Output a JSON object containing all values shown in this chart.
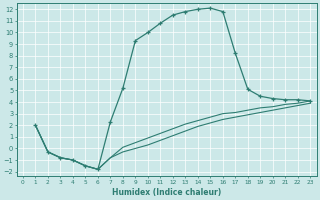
{
  "xlabel": "Humidex (Indice chaleur)",
  "bg_color": "#cce8e8",
  "line_color": "#2e7d72",
  "grid_color": "#ffffff",
  "xlim": [
    -0.5,
    23.5
  ],
  "ylim": [
    -2.4,
    12.5
  ],
  "xticks": [
    0,
    1,
    2,
    3,
    4,
    5,
    6,
    7,
    8,
    9,
    10,
    11,
    12,
    13,
    14,
    15,
    16,
    17,
    18,
    19,
    20,
    21,
    22,
    23
  ],
  "yticks": [
    -2,
    -1,
    0,
    1,
    2,
    3,
    4,
    5,
    6,
    7,
    8,
    9,
    10,
    11,
    12
  ],
  "line1_x": [
    1,
    2,
    3,
    4,
    5,
    6,
    7,
    8,
    9,
    10,
    11,
    12,
    13,
    14,
    15,
    16,
    17,
    18,
    19,
    20,
    21,
    22,
    23
  ],
  "line1_y": [
    2,
    -0.3,
    -0.8,
    -1.0,
    -1.5,
    -1.8,
    2.3,
    5.2,
    9.3,
    10.0,
    10.8,
    11.5,
    11.8,
    12.0,
    12.1,
    11.8,
    8.2,
    5.1,
    4.5,
    4.3,
    4.2,
    4.2,
    4.1
  ],
  "line2_x": [
    1,
    2,
    3,
    4,
    5,
    6,
    7,
    8,
    9,
    10,
    11,
    12,
    13,
    14,
    15,
    16,
    17,
    18,
    19,
    20,
    21,
    22,
    23
  ],
  "line2_y": [
    2,
    -0.3,
    -0.8,
    -1.0,
    -1.5,
    -1.8,
    -0.8,
    -0.3,
    0.0,
    0.3,
    0.7,
    1.1,
    1.5,
    1.9,
    2.2,
    2.5,
    2.7,
    2.9,
    3.1,
    3.3,
    3.5,
    3.7,
    3.9
  ],
  "line3_x": [
    1,
    2,
    3,
    4,
    5,
    6,
    7,
    8,
    9,
    10,
    11,
    12,
    13,
    14,
    15,
    16,
    17,
    18,
    19,
    20,
    21,
    22,
    23
  ],
  "line3_y": [
    2,
    -0.3,
    -0.8,
    -1.0,
    -1.5,
    -1.8,
    -0.8,
    0.1,
    0.5,
    0.9,
    1.3,
    1.7,
    2.1,
    2.4,
    2.7,
    3.0,
    3.1,
    3.3,
    3.5,
    3.6,
    3.8,
    3.9,
    4.1
  ]
}
